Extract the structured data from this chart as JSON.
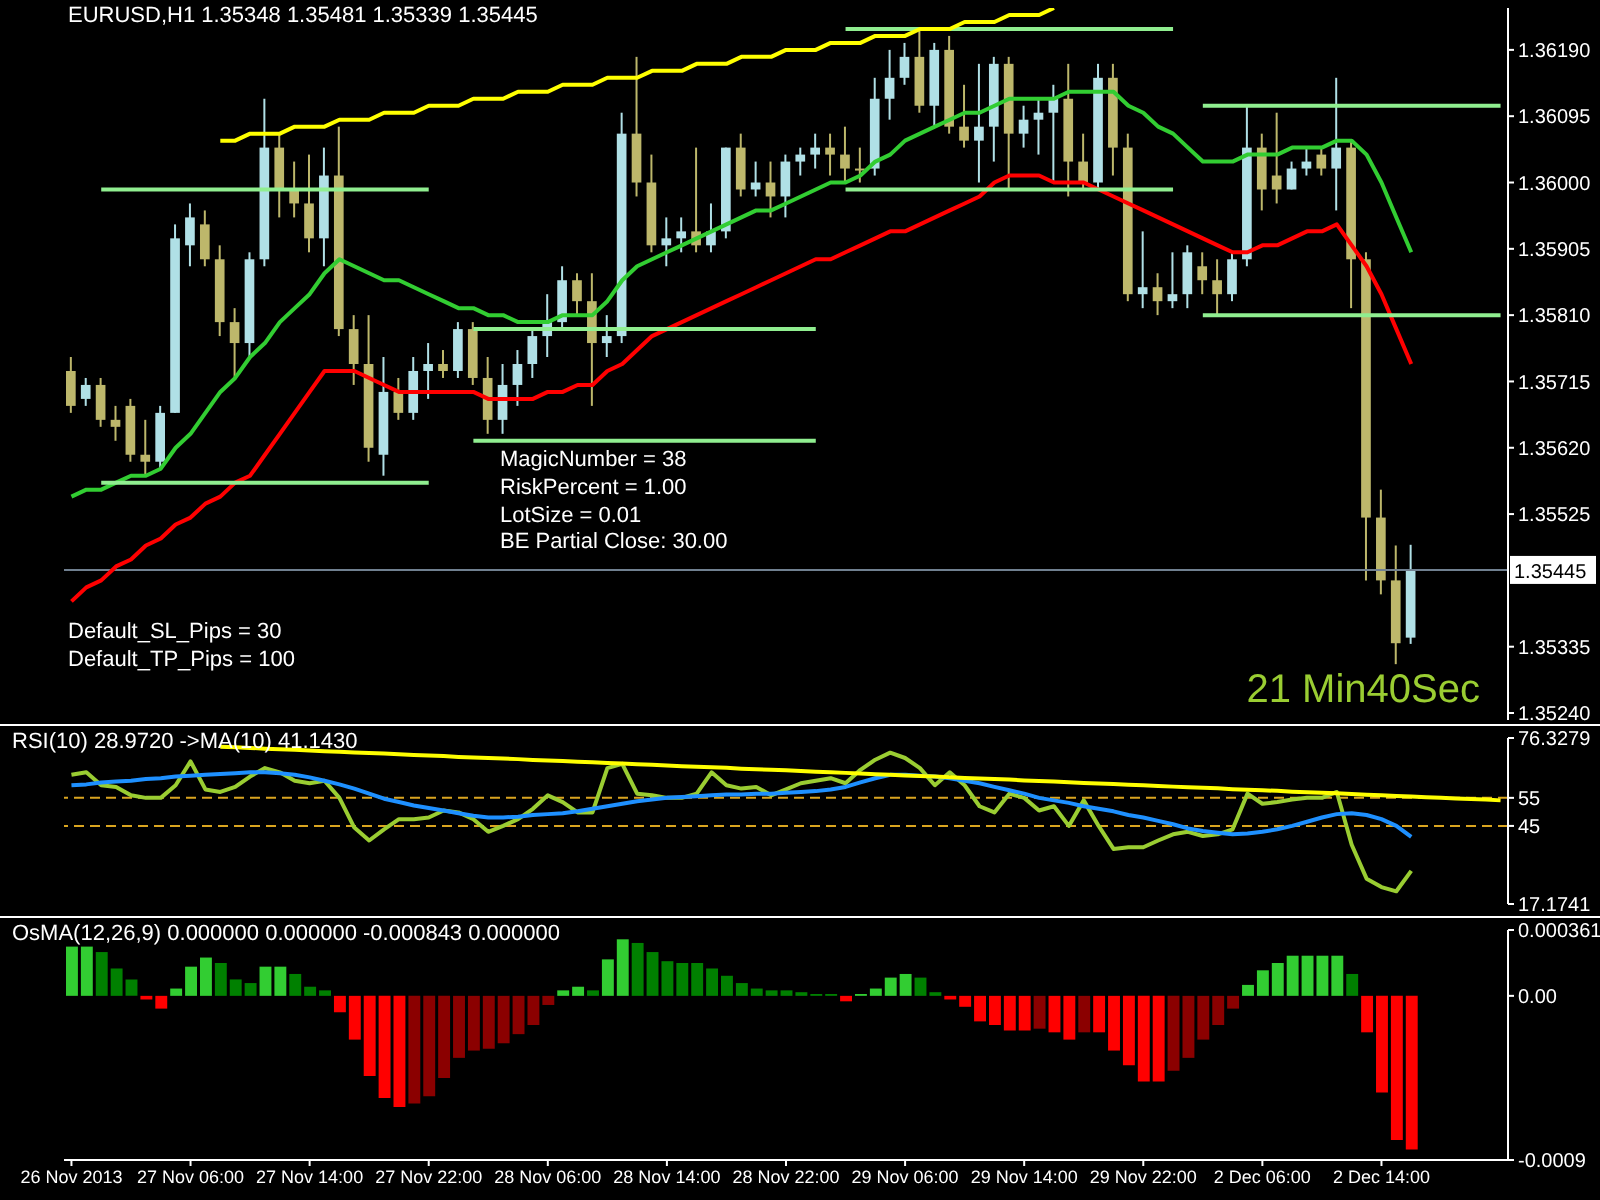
{
  "chart_data": [
    {
      "type": "candlestick",
      "title": "EURUSD,H1 1.35348 1.35481 1.35339 1.35445",
      "categories": [
        null,
        null,
        null,
        null,
        null,
        null,
        null,
        null,
        null,
        null,
        null,
        null,
        null,
        null,
        null,
        null,
        null,
        null,
        null,
        null,
        null,
        null,
        null,
        null,
        null,
        null,
        null,
        null,
        null,
        null,
        null,
        null,
        null,
        null,
        null,
        null,
        null,
        null,
        null,
        null,
        null,
        null,
        null,
        null,
        null,
        null,
        null,
        null,
        null,
        null,
        null,
        null,
        null,
        null,
        null,
        null,
        null,
        null,
        null,
        null,
        null,
        null,
        null,
        null,
        null,
        null,
        null,
        null,
        null,
        null,
        null,
        null,
        null,
        null,
        null,
        null,
        null,
        null,
        null,
        null,
        null,
        null,
        null,
        null,
        null,
        null,
        null,
        null,
        null,
        null,
        null,
        null,
        null,
        null,
        null,
        null,
        null
      ],
      "ohlc": [
        [
          1.3573,
          1.3575,
          1.3567,
          1.3568
        ],
        [
          1.3569,
          1.3572,
          1.3568,
          1.3571
        ],
        [
          1.3571,
          1.3572,
          1.3565,
          1.3566
        ],
        [
          1.3566,
          1.3568,
          1.3563,
          1.3565
        ],
        [
          1.3568,
          1.3569,
          1.356,
          1.3561
        ],
        [
          1.3561,
          1.3566,
          1.3558,
          1.356
        ],
        [
          1.356,
          1.3568,
          1.3559,
          1.3567
        ],
        [
          1.3567,
          1.3594,
          1.3567,
          1.3592
        ],
        [
          1.3591,
          1.3597,
          1.3588,
          1.3595
        ],
        [
          1.3594,
          1.3596,
          1.3588,
          1.3589
        ],
        [
          1.3589,
          1.3591,
          1.3578,
          1.358
        ],
        [
          1.358,
          1.3582,
          1.3572,
          1.3577
        ],
        [
          1.3577,
          1.359,
          1.3575,
          1.3589
        ],
        [
          1.3589,
          1.3612,
          1.3588,
          1.3605
        ],
        [
          1.3605,
          1.3607,
          1.3595,
          1.3599
        ],
        [
          1.3599,
          1.3603,
          1.3595,
          1.3597
        ],
        [
          1.3597,
          1.3604,
          1.359,
          1.3592
        ],
        [
          1.3592,
          1.3605,
          1.3588,
          1.3601
        ],
        [
          1.3601,
          1.3608,
          1.3578,
          1.3579
        ],
        [
          1.3579,
          1.3581,
          1.3571,
          1.3574
        ],
        [
          1.3574,
          1.3581,
          1.356,
          1.3562
        ],
        [
          1.3561,
          1.3575,
          1.3558,
          1.357
        ],
        [
          1.357,
          1.3572,
          1.3566,
          1.3567
        ],
        [
          1.3567,
          1.3575,
          1.3566,
          1.3573
        ],
        [
          1.3573,
          1.3577,
          1.3569,
          1.3574
        ],
        [
          1.3574,
          1.3576,
          1.3572,
          1.3573
        ],
        [
          1.3573,
          1.358,
          1.3572,
          1.3579
        ],
        [
          1.3579,
          1.358,
          1.3571,
          1.3572
        ],
        [
          1.3572,
          1.3575,
          1.3564,
          1.3566
        ],
        [
          1.3566,
          1.3574,
          1.3564,
          1.3571
        ],
        [
          1.3571,
          1.3576,
          1.3568,
          1.3574
        ],
        [
          1.3574,
          1.3579,
          1.3572,
          1.3578
        ],
        [
          1.3578,
          1.3584,
          1.3575,
          1.358
        ],
        [
          1.358,
          1.3588,
          1.3579,
          1.3586
        ],
        [
          1.3586,
          1.3587,
          1.3581,
          1.3583
        ],
        [
          1.3583,
          1.3587,
          1.3568,
          1.3577
        ],
        [
          1.3577,
          1.3581,
          1.3575,
          1.3578
        ],
        [
          1.3578,
          1.361,
          1.3577,
          1.3607
        ],
        [
          1.3607,
          1.3618,
          1.3598,
          1.36
        ],
        [
          1.36,
          1.3604,
          1.359,
          1.3591
        ],
        [
          1.3591,
          1.3595,
          1.3588,
          1.3592
        ],
        [
          1.3592,
          1.3595,
          1.359,
          1.3593
        ],
        [
          1.3593,
          1.3605,
          1.359,
          1.3591
        ],
        [
          1.3591,
          1.3597,
          1.359,
          1.3593
        ],
        [
          1.3593,
          1.3605,
          1.3592,
          1.3605
        ],
        [
          1.3605,
          1.3607,
          1.3598,
          1.3599
        ],
        [
          1.3599,
          1.3603,
          1.3598,
          1.36
        ],
        [
          1.36,
          1.3603,
          1.3595,
          1.3598
        ],
        [
          1.3598,
          1.3604,
          1.3595,
          1.3603
        ],
        [
          1.3603,
          1.3605,
          1.3601,
          1.3604
        ],
        [
          1.3604,
          1.3607,
          1.3602,
          1.3605
        ],
        [
          1.3605,
          1.3607,
          1.3601,
          1.3604
        ],
        [
          1.3604,
          1.3608,
          1.36,
          1.3602
        ],
        [
          1.3602,
          1.3605,
          1.36,
          1.3602
        ],
        [
          1.3602,
          1.3615,
          1.3601,
          1.3612
        ],
        [
          1.3612,
          1.3619,
          1.3609,
          1.3615
        ],
        [
          1.3615,
          1.362,
          1.3614,
          1.3618
        ],
        [
          1.3618,
          1.3622,
          1.361,
          1.3611
        ],
        [
          1.3611,
          1.362,
          1.3608,
          1.3619
        ],
        [
          1.3619,
          1.3621,
          1.3607,
          1.3608
        ],
        [
          1.3608,
          1.3614,
          1.3605,
          1.3606
        ],
        [
          1.3606,
          1.3617,
          1.36,
          1.3608
        ],
        [
          1.3608,
          1.3618,
          1.3603,
          1.3617
        ],
        [
          1.3617,
          1.3618,
          1.3599,
          1.3607
        ],
        [
          1.3607,
          1.3611,
          1.3605,
          1.3609
        ],
        [
          1.3609,
          1.3612,
          1.3604,
          1.361
        ],
        [
          1.361,
          1.3614,
          1.36,
          1.3612
        ],
        [
          1.3612,
          1.3617,
          1.3598,
          1.3603
        ],
        [
          1.3603,
          1.3607,
          1.3599,
          1.36
        ],
        [
          1.36,
          1.3617,
          1.3599,
          1.3615
        ],
        [
          1.3615,
          1.3617,
          1.3601,
          1.3605
        ],
        [
          1.3605,
          1.3607,
          1.3583,
          1.3584
        ],
        [
          1.3584,
          1.3593,
          1.3582,
          1.3585
        ],
        [
          1.3585,
          1.3587,
          1.3581,
          1.3583
        ],
        [
          1.3583,
          1.359,
          1.3582,
          1.3584
        ],
        [
          1.3584,
          1.3591,
          1.3582,
          1.359
        ],
        [
          1.3588,
          1.359,
          1.3584,
          1.3586
        ],
        [
          1.3586,
          1.3589,
          1.3581,
          1.3584
        ],
        [
          1.3584,
          1.359,
          1.3583,
          1.3589
        ],
        [
          1.3589,
          1.3611,
          1.3588,
          1.3605
        ],
        [
          1.3605,
          1.3607,
          1.3596,
          1.3599
        ],
        [
          1.3601,
          1.361,
          1.3597,
          1.3599
        ],
        [
          1.3599,
          1.3603,
          1.3599,
          1.3602
        ],
        [
          1.3602,
          1.3605,
          1.3601,
          1.3603
        ],
        [
          1.3604,
          1.3605,
          1.3601,
          1.3602
        ],
        [
          1.3602,
          1.3615,
          1.3596,
          1.3605
        ],
        [
          1.3605,
          1.3606,
          1.3582,
          1.3589
        ],
        [
          1.3589,
          1.359,
          1.3543,
          1.3552
        ],
        [
          1.3552,
          1.3556,
          1.3541,
          1.3543
        ],
        [
          1.3543,
          1.3548,
          1.3531,
          1.3534
        ],
        [
          1.35348,
          1.35481,
          1.35339,
          1.35445
        ],
        null,
        null,
        null,
        null,
        null,
        null
      ],
      "colors": [
        "#bdb76b",
        "#b0e0e6",
        "#bdb76b",
        "#bdb76b",
        "#bdb76b",
        "#bdb76b",
        "#b0e0e6",
        "#b0e0e6",
        "#b0e0e6",
        "#bdb76b",
        "#bdb76b",
        "#bdb76b",
        "#b0e0e6",
        "#b0e0e6",
        "#bdb76b",
        "#bdb76b",
        "#bdb76b",
        "#b0e0e6",
        "#bdb76b",
        "#bdb76b",
        "#bdb76b",
        "#b0e0e6",
        "#bdb76b",
        "#b0e0e6",
        "#b0e0e6",
        "#bdb76b",
        "#b0e0e6",
        "#bdb76b",
        "#bdb76b",
        "#b0e0e6",
        "#b0e0e6",
        "#b0e0e6",
        "#b0e0e6",
        "#b0e0e6",
        "#bdb76b",
        "#bdb76b",
        "#b0e0e6",
        "#b0e0e6",
        "#bdb76b",
        "#bdb76b",
        "#b0e0e6",
        "#b0e0e6",
        "#bdb76b",
        "#b0e0e6",
        "#b0e0e6",
        "#bdb76b",
        "#b0e0e6",
        "#bdb76b",
        "#b0e0e6",
        "#b0e0e6",
        "#b0e0e6",
        "#bdb76b",
        "#bdb76b",
        "#bdb76b",
        "#b0e0e6",
        "#b0e0e6",
        "#b0e0e6",
        "#bdb76b",
        "#b0e0e6",
        "#bdb76b",
        "#bdb76b",
        "#b0e0e6",
        "#b0e0e6",
        "#bdb76b",
        "#b0e0e6",
        "#b0e0e6",
        "#b0e0e6",
        "#bdb76b",
        "#bdb76b",
        "#b0e0e6",
        "#bdb76b",
        "#bdb76b",
        "#b0e0e6",
        "#bdb76b",
        "#b0e0e6",
        "#b0e0e6",
        "#bdb76b",
        "#bdb76b",
        "#b0e0e6",
        "#b0e0e6",
        "#bdb76b",
        "#bdb76b",
        "#b0e0e6",
        "#b0e0e6",
        "#bdb76b",
        "#b0e0e6",
        "#bdb76b",
        "#bdb76b",
        "#bdb76b",
        "#bdb76b",
        "#b0e0e6",
        null,
        null,
        null,
        null,
        null,
        null
      ],
      "series": [
        {
          "type": "line",
          "color": "#32cd32",
          "values": [
            1.3555,
            1.3556,
            1.3556,
            1.3557,
            1.3558,
            1.3558,
            1.3559,
            1.3562,
            1.3564,
            1.3567,
            1.357,
            1.3572,
            1.3575,
            1.3577,
            1.358,
            1.3582,
            1.3584,
            1.3587,
            1.3589,
            1.3588,
            1.3587,
            1.3586,
            1.3586,
            1.3585,
            1.3584,
            1.3583,
            1.3582,
            1.3582,
            1.3581,
            1.3581,
            1.358,
            1.358,
            1.358,
            1.3581,
            1.3581,
            1.3581,
            1.3583,
            1.3586,
            1.3588,
            1.3589,
            1.359,
            1.3591,
            1.3592,
            1.3593,
            1.3594,
            1.3595,
            1.3596,
            1.3596,
            1.3597,
            1.3598,
            1.3599,
            1.36,
            1.36,
            1.3601,
            1.3603,
            1.3604,
            1.3606,
            1.3607,
            1.3608,
            1.3609,
            1.361,
            1.361,
            1.3611,
            1.3612,
            1.3612,
            1.3612,
            1.3612,
            1.3613,
            1.3613,
            1.3613,
            1.3613,
            1.3611,
            1.361,
            1.3608,
            1.3607,
            1.3605,
            1.3603,
            1.3603,
            1.3603,
            1.3604,
            1.3604,
            1.3604,
            1.3605,
            1.3605,
            1.3605,
            1.3606,
            1.3606,
            1.3604,
            1.36,
            1.3595,
            1.359,
            null,
            null,
            null,
            null,
            null,
            null
          ]
        },
        {
          "type": "line",
          "color": "#ff0000",
          "values": [
            1.354,
            1.3542,
            1.3543,
            1.3545,
            1.3546,
            1.3548,
            1.3549,
            1.3551,
            1.3552,
            1.3554,
            1.3555,
            1.3557,
            1.3558,
            1.3561,
            1.3564,
            1.3567,
            1.357,
            1.3573,
            1.3573,
            1.3573,
            1.3572,
            1.3571,
            1.357,
            1.357,
            1.357,
            1.357,
            1.357,
            1.357,
            1.3569,
            1.3569,
            1.3569,
            1.3569,
            1.357,
            1.357,
            1.3571,
            1.3571,
            1.3573,
            1.3574,
            1.3576,
            1.3578,
            1.3579,
            1.358,
            1.3581,
            1.3582,
            1.3583,
            1.3584,
            1.3585,
            1.3586,
            1.3587,
            1.3588,
            1.3589,
            1.3589,
            1.359,
            1.3591,
            1.3592,
            1.3593,
            1.3593,
            1.3594,
            1.3595,
            1.3596,
            1.3597,
            1.3598,
            1.36,
            1.3601,
            1.3601,
            1.3601,
            1.36,
            1.36,
            1.36,
            1.3599,
            1.3598,
            1.3597,
            1.3596,
            1.3595,
            1.3594,
            1.3593,
            1.3592,
            1.3591,
            1.359,
            1.359,
            1.3591,
            1.3591,
            1.3592,
            1.3593,
            1.3593,
            1.3594,
            1.3591,
            1.3588,
            1.3584,
            1.3579,
            1.3574,
            null,
            null,
            null,
            null,
            null,
            null
          ]
        },
        {
          "type": "line",
          "color": "#90ee90",
          "values": [
            null,
            null,
            1.3599,
            1.3599,
            1.3599,
            1.3599,
            1.3599,
            1.3599,
            1.3599,
            1.3599,
            1.3599,
            1.3599,
            1.3599,
            1.3599,
            1.3599,
            1.3599,
            1.3599,
            1.3599,
            1.3599,
            1.3599,
            1.3599,
            1.3599,
            1.3599,
            1.3599,
            1.3599,
            null,
            null,
            1.3579,
            1.3579,
            1.3579,
            1.3579,
            1.3579,
            1.3579,
            1.3579,
            1.3579,
            1.3579,
            1.3579,
            1.3579,
            1.3579,
            1.3579,
            1.3579,
            1.3579,
            1.3579,
            1.3579,
            1.3579,
            1.3579,
            1.3579,
            1.3579,
            1.3579,
            1.3579,
            1.3579,
            null,
            1.3622,
            1.3622,
            1.3622,
            1.3622,
            1.3622,
            1.3622,
            1.3622,
            1.3622,
            1.3622,
            1.3622,
            1.3622,
            1.3622,
            1.3622,
            1.3622,
            1.3622,
            1.3622,
            1.3622,
            1.3622,
            1.3622,
            1.3622,
            1.3622,
            1.3622,
            1.3622,
            null,
            1.3611,
            1.3611,
            1.3611,
            1.3611,
            1.3611,
            1.3611,
            1.3611,
            1.3611,
            1.3611,
            1.3611,
            1.3611,
            1.3611,
            1.3611,
            1.3611,
            1.3611,
            1.3611,
            1.3611,
            1.3611,
            1.3611,
            1.3611,
            1.3611
          ]
        },
        {
          "type": "line",
          "color": "#90ee90",
          "values": [
            null,
            null,
            1.3557,
            1.3557,
            1.3557,
            1.3557,
            1.3557,
            1.3557,
            1.3557,
            1.3557,
            1.3557,
            1.3557,
            1.3557,
            1.3557,
            1.3557,
            1.3557,
            1.3557,
            1.3557,
            1.3557,
            1.3557,
            1.3557,
            1.3557,
            1.3557,
            1.3557,
            1.3557,
            null,
            null,
            1.3563,
            1.3563,
            1.3563,
            1.3563,
            1.3563,
            1.3563,
            1.3563,
            1.3563,
            1.3563,
            1.3563,
            1.3563,
            1.3563,
            1.3563,
            1.3563,
            1.3563,
            1.3563,
            1.3563,
            1.3563,
            1.3563,
            1.3563,
            1.3563,
            1.3563,
            1.3563,
            1.3563,
            null,
            1.3599,
            1.3599,
            1.3599,
            1.3599,
            1.3599,
            1.3599,
            1.3599,
            1.3599,
            1.3599,
            1.3599,
            1.3599,
            1.3599,
            1.3599,
            1.3599,
            1.3599,
            1.3599,
            1.3599,
            1.3599,
            1.3599,
            1.3599,
            1.3599,
            1.3599,
            1.3599,
            null,
            1.3581,
            1.3581,
            1.3581,
            1.3581,
            1.3581,
            1.3581,
            1.3581,
            1.3581,
            1.3581,
            1.3581,
            1.3581,
            1.3581,
            1.3581,
            1.3581,
            1.3581,
            1.3581,
            1.3581,
            1.3581,
            1.3581,
            1.3581,
            1.3581
          ]
        },
        {
          "type": "line",
          "color": "#ffff00",
          "values": [
            null,
            null,
            null,
            null,
            null,
            null,
            null,
            null,
            null,
            null,
            1.3606,
            1.3606,
            1.3607,
            1.3607,
            1.3607,
            1.3608,
            1.3608,
            1.3608,
            1.3609,
            1.3609,
            1.3609,
            1.361,
            1.361,
            1.361,
            1.3611,
            1.3611,
            1.3611,
            1.3612,
            1.3612,
            1.3612,
            1.3613,
            1.3613,
            1.3613,
            1.3614,
            1.3614,
            1.3614,
            1.3615,
            1.3615,
            1.3615,
            1.3616,
            1.3616,
            1.3616,
            1.3617,
            1.3617,
            1.3617,
            1.3618,
            1.3618,
            1.3618,
            1.3619,
            1.3619,
            1.3619,
            1.362,
            1.362,
            1.362,
            1.3621,
            1.3621,
            1.3621,
            1.3622,
            1.3622,
            1.3622,
            1.3623,
            1.3623,
            1.3623,
            1.3624,
            1.3624,
            1.3624,
            1.3625,
            null,
            null,
            null,
            null,
            null,
            null,
            null,
            null,
            null,
            null,
            null,
            null,
            null,
            null,
            null,
            null,
            null,
            null,
            null,
            null,
            null,
            null,
            null,
            null,
            null,
            null,
            null,
            null,
            null,
            null
          ]
        }
      ],
      "ylim": [
        1.3523,
        1.3625
      ],
      "yticks": [
        {
          "value": 1.3524,
          "label": "1.35240"
        },
        {
          "value": 1.35335,
          "label": "1.35335"
        },
        {
          "value": 1.35525,
          "label": "1.35525"
        },
        {
          "value": 1.3562,
          "label": "1.35620"
        },
        {
          "value": 1.35715,
          "label": "1.35715"
        },
        {
          "value": 1.3581,
          "label": "1.35810"
        },
        {
          "value": 1.35905,
          "label": "1.35905"
        },
        {
          "value": 1.36,
          "label": "1.36000"
        },
        {
          "value": 1.36095,
          "label": "1.36095"
        },
        {
          "value": 1.3619,
          "label": "1.36190"
        }
      ],
      "ref_lines": [
        {
          "axis": "y",
          "value": 1.35445,
          "label": "1.35445",
          "color": "#708090"
        }
      ],
      "annotations": [
        "MagicNumber = 38",
        "RiskPercent = 1.00",
        "LotSize = 0.01",
        "BE Partial Close: 30.00",
        "Default_SL_Pips = 30",
        "Default_TP_Pips = 100",
        "21 Min40Sec"
      ],
      "tick_labels": "y"
    },
    {
      "type": "line",
      "title": "RSI(10) 28.9720 ->MA(10) 41.1430",
      "categories": [
        null,
        null,
        null,
        null,
        null,
        null,
        null,
        null,
        null,
        null,
        null,
        null,
        null,
        null,
        null,
        null,
        null,
        null,
        null,
        null,
        null,
        null,
        null,
        null,
        null,
        null,
        null,
        null,
        null,
        null,
        null,
        null,
        null,
        null,
        null,
        null,
        null,
        null,
        null,
        null,
        null,
        null,
        null,
        null,
        null,
        null,
        null,
        null,
        null,
        null,
        null,
        null,
        null,
        null,
        null,
        null,
        null,
        null,
        null,
        null,
        null,
        null,
        null,
        null,
        null,
        null,
        null,
        null,
        null,
        null,
        null,
        null,
        null,
        null,
        null,
        null,
        null,
        null,
        null,
        null,
        null,
        null,
        null,
        null,
        null,
        null,
        null,
        null,
        null,
        null,
        null,
        null,
        null,
        null,
        null,
        null,
        null
      ],
      "series": [
        {
          "color": "#9acd32",
          "values": [
            63.2,
            64.1,
            59.5,
            58.9,
            55.9,
            55.0,
            55.0,
            59.5,
            68.0,
            58.0,
            57.1,
            58.9,
            62.6,
            65.6,
            64.1,
            61.1,
            60.2,
            61.1,
            55.0,
            44.4,
            39.8,
            43.8,
            47.4,
            47.4,
            48.0,
            50.5,
            49.8,
            47.4,
            42.9,
            45.0,
            47.4,
            51.1,
            55.9,
            53.5,
            49.8,
            49.8,
            65.6,
            67.1,
            56.5,
            55.9,
            55.0,
            55.0,
            56.5,
            64.1,
            59.5,
            58.3,
            58.9,
            55.9,
            58.0,
            60.2,
            61.1,
            62.0,
            60.2,
            65.0,
            68.6,
            71.1,
            69.2,
            65.6,
            59.5,
            64.1,
            59.5,
            52.0,
            49.8,
            56.5,
            55.0,
            50.5,
            52.0,
            45.0,
            54.1,
            45.0,
            36.8,
            37.4,
            37.4,
            39.8,
            42.0,
            42.9,
            41.4,
            42.0,
            43.8,
            56.5,
            52.9,
            53.5,
            54.4,
            55.0,
            55.0,
            57.1,
            38.3,
            26.2,
            23.2,
            21.7,
            29.0,
            null,
            null,
            null,
            null,
            null,
            null
          ]
        },
        {
          "color": "#1e90ff",
          "values": [
            59.5,
            59.8,
            60.5,
            60.8,
            61.1,
            61.7,
            62.0,
            62.6,
            62.9,
            63.2,
            63.5,
            63.8,
            64.1,
            64.1,
            63.8,
            63.2,
            62.3,
            61.1,
            59.8,
            58.3,
            56.5,
            54.7,
            53.5,
            52.3,
            51.4,
            50.5,
            49.5,
            48.6,
            48.0,
            48.0,
            48.3,
            48.9,
            49.2,
            49.5,
            50.2,
            51.1,
            52.0,
            52.9,
            53.8,
            54.4,
            55.0,
            55.3,
            55.6,
            55.9,
            56.2,
            56.2,
            56.5,
            56.5,
            56.8,
            57.1,
            57.4,
            58.0,
            58.9,
            60.5,
            62.0,
            63.2,
            63.2,
            62.9,
            62.6,
            62.0,
            61.1,
            60.2,
            58.9,
            57.7,
            56.5,
            55.0,
            54.1,
            53.2,
            52.0,
            51.1,
            50.2,
            48.9,
            48.0,
            46.8,
            45.6,
            44.1,
            43.2,
            42.6,
            42.0,
            42.3,
            42.9,
            43.8,
            45.0,
            46.5,
            48.0,
            49.2,
            49.5,
            48.9,
            47.4,
            45.0,
            41.1,
            null,
            null,
            null,
            null,
            null,
            null
          ]
        },
        {
          "color": "#ffff00",
          "values": [
            null,
            null,
            null,
            null,
            null,
            null,
            null,
            null,
            null,
            null,
            73.2,
            73.0,
            72.8,
            72.5,
            72.3,
            72.1,
            71.9,
            71.6,
            71.4,
            71.2,
            71.0,
            70.8,
            70.5,
            70.3,
            70.1,
            69.9,
            69.6,
            69.4,
            69.2,
            69.0,
            68.8,
            68.5,
            68.3,
            68.1,
            67.9,
            67.7,
            67.4,
            67.2,
            67.0,
            66.8,
            66.5,
            66.3,
            66.1,
            65.9,
            65.7,
            65.4,
            65.2,
            65.0,
            64.8,
            64.6,
            64.3,
            64.1,
            63.9,
            63.7,
            63.4,
            63.2,
            63.0,
            62.8,
            62.6,
            62.3,
            62.1,
            61.9,
            61.7,
            61.5,
            61.2,
            61.0,
            60.8,
            60.6,
            60.3,
            60.1,
            59.9,
            59.7,
            59.5,
            59.2,
            59.0,
            58.8,
            58.6,
            58.4,
            58.1,
            57.9,
            57.7,
            57.5,
            57.2,
            57.0,
            56.8,
            56.6,
            56.4,
            56.1,
            55.9,
            55.7,
            55.5,
            55.2,
            55.0,
            54.8,
            54.6,
            54.4,
            54.1
          ]
        }
      ],
      "ylim": [
        17.1741,
        76.3279
      ],
      "yticks": [
        17.1741,
        45,
        55,
        76.3279
      ],
      "ref_lines": [
        {
          "axis": "y",
          "value": 45,
          "color": "#daa520",
          "line_style": "dashed"
        },
        {
          "axis": "y",
          "value": 55,
          "color": "#daa520",
          "line_style": "dashed"
        }
      ],
      "tick_labels": "y"
    },
    {
      "type": "bar",
      "title": "OsMA(12,26,9) 0.000000 0.000000 -0.000843 0.000000",
      "categories": [
        "26 Nov 2013",
        null,
        null,
        null,
        null,
        null,
        null,
        null,
        "27 Nov 06:00",
        null,
        null,
        null,
        null,
        null,
        null,
        null,
        "27 Nov 14:00",
        null,
        null,
        null,
        null,
        null,
        null,
        null,
        "27 Nov 22:00",
        null,
        null,
        null,
        null,
        null,
        null,
        null,
        "28 Nov 06:00",
        null,
        null,
        null,
        null,
        null,
        null,
        null,
        "28 Nov 14:00",
        null,
        null,
        null,
        null,
        null,
        null,
        null,
        "28 Nov 22:00",
        null,
        null,
        null,
        null,
        null,
        null,
        null,
        "29 Nov 06:00",
        null,
        null,
        null,
        null,
        null,
        null,
        null,
        "29 Nov 14:00",
        null,
        null,
        null,
        null,
        null,
        null,
        null,
        "29 Nov 22:00",
        null,
        null,
        null,
        null,
        null,
        null,
        null,
        "2 Dec 06:00",
        null,
        null,
        null,
        null,
        null,
        null,
        null,
        "2 Dec 14:00",
        null,
        null,
        null,
        null,
        null,
        null,
        null,
        null
      ],
      "values": [
        0.00027,
        0.00027,
        0.00024,
        0.00015,
        9e-05,
        -2e-05,
        -7e-05,
        4e-05,
        0.00016,
        0.00021,
        0.00018,
        9e-05,
        7e-05,
        0.00016,
        0.00016,
        0.00012,
        5e-05,
        3e-05,
        -9e-05,
        -0.00024,
        -0.00044,
        -0.00056,
        -0.00061,
        -0.00059,
        -0.00055,
        -0.00045,
        -0.00034,
        -0.0003,
        -0.00029,
        -0.00026,
        -0.00021,
        -0.00016,
        -5e-05,
        3e-05,
        5e-05,
        3e-05,
        0.0002,
        0.00031,
        0.00029,
        0.00024,
        0.00019,
        0.00018,
        0.00018,
        0.00015,
        0.00011,
        7e-05,
        4e-05,
        3e-05,
        3e-05,
        2e-05,
        1e-05,
        1e-05,
        -3e-05,
        1e-05,
        4e-05,
        0.0001,
        0.00012,
        0.0001,
        2e-05,
        -2e-05,
        -6e-05,
        -0.00014,
        -0.00016,
        -0.00019,
        -0.00019,
        -0.00018,
        -0.0002,
        -0.00024,
        -0.0002,
        -0.0002,
        -0.0003,
        -0.00038,
        -0.00047,
        -0.00047,
        -0.00041,
        -0.00034,
        -0.00024,
        -0.00016,
        -7e-05,
        6e-05,
        0.00014,
        0.00018,
        0.00022,
        0.00022,
        0.00022,
        0.00022,
        0.00012,
        -0.0002,
        -0.00053,
        -0.00079,
        -0.000843,
        null,
        null,
        null,
        null,
        null,
        null
      ],
      "colors": [
        "#32cd32",
        "#32cd32",
        "#008000",
        "#008000",
        "#008000",
        "#ff0000",
        "#ff0000",
        "#32cd32",
        "#32cd32",
        "#32cd32",
        "#008000",
        "#008000",
        "#008000",
        "#32cd32",
        "#32cd32",
        "#008000",
        "#008000",
        "#008000",
        "#ff0000",
        "#ff0000",
        "#ff0000",
        "#ff0000",
        "#ff0000",
        "#8b0000",
        "#8b0000",
        "#8b0000",
        "#8b0000",
        "#8b0000",
        "#8b0000",
        "#8b0000",
        "#8b0000",
        "#8b0000",
        "#8b0000",
        "#32cd32",
        "#32cd32",
        "#008000",
        "#32cd32",
        "#32cd32",
        "#008000",
        "#008000",
        "#008000",
        "#008000",
        "#008000",
        "#008000",
        "#008000",
        "#008000",
        "#008000",
        "#008000",
        "#008000",
        "#008000",
        "#008000",
        "#008000",
        "#ff0000",
        "#32cd32",
        "#32cd32",
        "#32cd32",
        "#32cd32",
        "#008000",
        "#008000",
        "#ff0000",
        "#ff0000",
        "#ff0000",
        "#ff0000",
        "#ff0000",
        "#ff0000",
        "#8b0000",
        "#ff0000",
        "#ff0000",
        "#8b0000",
        "#ff0000",
        "#ff0000",
        "#ff0000",
        "#ff0000",
        "#ff0000",
        "#8b0000",
        "#8b0000",
        "#8b0000",
        "#8b0000",
        "#8b0000",
        "#32cd32",
        "#32cd32",
        "#32cd32",
        "#32cd32",
        "#32cd32",
        "#32cd32",
        "#32cd32",
        "#008000",
        "#ff0000",
        "#ff0000",
        "#ff0000",
        "#ff0000",
        null,
        null,
        null,
        null,
        null,
        null
      ],
      "ylim": [
        -0.0009,
        0.000361
      ],
      "yticks": [
        -0.0009,
        {
          "value": 0,
          "label": "0.00"
        },
        0.000361
      ]
    }
  ]
}
